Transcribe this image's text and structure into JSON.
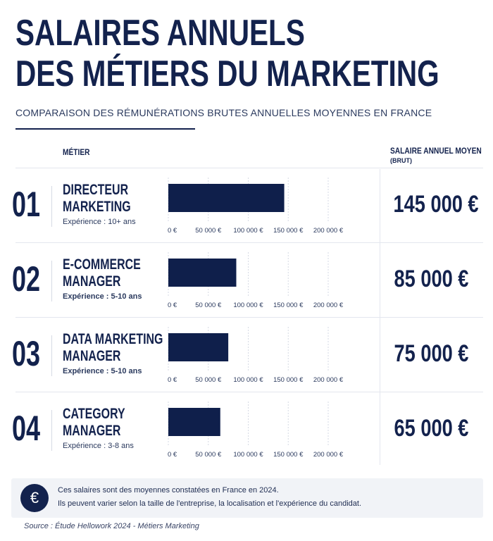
{
  "title": {
    "line1": "SALAIRES ANNUELS",
    "line2": "DES MÉTIERS DU MARKETING"
  },
  "subtitle": "COMPARAISON DES RÉMUNÉRATIONS BRUTES ANNUELLES MOYENNES EN FRANCE",
  "columns": {
    "job": "MÉTIER",
    "salary": "SALAIRE ANNUEL MOYEN",
    "salary_sub": "(BRUT)"
  },
  "rows": [
    {
      "rank": "01",
      "job_line1": "DIRECTEUR",
      "job_line2": "MARKETING",
      "experience": "Expérience : 10+ ans",
      "salary": "145 000 €"
    },
    {
      "rank": "02",
      "job_line1": "E-COMMERCE",
      "job_line2": "MANAGER",
      "experience": "Expérience : 5-10 ans",
      "salary": "85 000 €"
    },
    {
      "rank": "03",
      "job_line1": "DATA MARKETING",
      "job_line2": "MANAGER",
      "experience": "Expérience : 5-10 ans",
      "salary": "75 000 €"
    },
    {
      "rank": "04",
      "job_line1": "CATEGORY",
      "job_line2": "MANAGER",
      "experience": "Expérience : 3-8 ans",
      "salary": "65 000 €"
    }
  ],
  "note": {
    "line1": "Ces salaires sont des moyennes constatées en France en 2024.",
    "line2": "Ils peuvent varier selon la taille de l'entreprise, la localisation et l'expérience du candidat.",
    "icon": "euro-icon",
    "symbol": "€"
  },
  "source": "Source : Étude Hellowork 2024 - Métiers Marketing",
  "colors": {
    "navy": "#13224d",
    "bar": "#0f1f4b",
    "grid": "#d6dae4"
  },
  "chart_data": {
    "type": "bar",
    "orientation": "horizontal",
    "categories": [
      "DIRECTEUR MARKETING",
      "E-COMMERCE MANAGER",
      "DATA MARKETING MANAGER",
      "CATEGORY MANAGER"
    ],
    "values": [
      145000,
      85000,
      75000,
      65000
    ],
    "xlim": [
      0,
      200000
    ],
    "ticks": [
      0,
      50000,
      100000,
      150000,
      200000
    ],
    "tick_labels": [
      "0 €",
      "50 000 €",
      "100 000 €",
      "150 000 €",
      "200 000 €"
    ],
    "grid": true
  }
}
